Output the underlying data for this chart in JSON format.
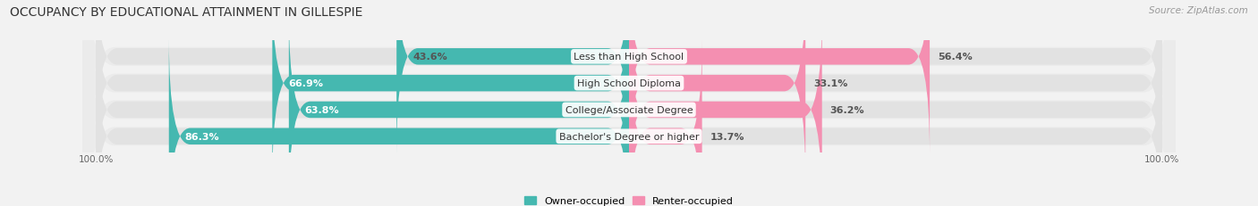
{
  "title": "OCCUPANCY BY EDUCATIONAL ATTAINMENT IN GILLESPIE",
  "source": "Source: ZipAtlas.com",
  "categories": [
    "Less than High School",
    "High School Diploma",
    "College/Associate Degree",
    "Bachelor's Degree or higher"
  ],
  "owner_values": [
    43.6,
    66.9,
    63.8,
    86.3
  ],
  "renter_values": [
    56.4,
    33.1,
    36.2,
    13.7
  ],
  "owner_color": "#45b8b0",
  "renter_color": "#f48fb1",
  "bg_color": "#f2f2f2",
  "bar_bg_color": "#e2e2e2",
  "row_bg_color": "#ebebeb",
  "title_fontsize": 10,
  "source_fontsize": 7.5,
  "label_fontsize": 8,
  "value_fontsize": 8,
  "legend_fontsize": 8,
  "axis_label_fontsize": 7.5,
  "bar_height": 0.62,
  "owner_text_colors": [
    "#555555",
    "#ffffff",
    "#ffffff",
    "#ffffff"
  ]
}
